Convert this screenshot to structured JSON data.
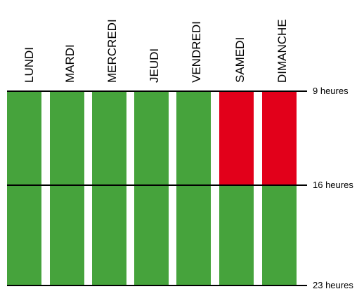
{
  "colors": {
    "open": "#46a33c",
    "closed": "#e2001a",
    "line": "#000000"
  },
  "days": [
    "LUNDI",
    "MARDI",
    "MERCREDI",
    "JEUDI",
    "VENDREDI",
    "SAMEDI",
    "DIMANCHE"
  ],
  "time_marks": [
    "9 heures",
    "16 heures",
    "23 heures"
  ],
  "blocks": [
    {
      "day": "LUNDI",
      "from": "9 heures",
      "to": "16 heures",
      "status": "open"
    },
    {
      "day": "LUNDI",
      "from": "16 heures",
      "to": "23 heures",
      "status": "open"
    },
    {
      "day": "MARDI",
      "from": "9 heures",
      "to": "16 heures",
      "status": "open"
    },
    {
      "day": "MARDI",
      "from": "16 heures",
      "to": "23 heures",
      "status": "open"
    },
    {
      "day": "MERCREDI",
      "from": "9 heures",
      "to": "16 heures",
      "status": "open"
    },
    {
      "day": "MERCREDI",
      "from": "16 heures",
      "to": "23 heures",
      "status": "open"
    },
    {
      "day": "JEUDI",
      "from": "9 heures",
      "to": "16 heures",
      "status": "open"
    },
    {
      "day": "JEUDI",
      "from": "16 heures",
      "to": "23 heures",
      "status": "open"
    },
    {
      "day": "VENDREDI",
      "from": "9 heures",
      "to": "16 heures",
      "status": "open"
    },
    {
      "day": "VENDREDI",
      "from": "16 heures",
      "to": "23 heures",
      "status": "open"
    },
    {
      "day": "SAMEDI",
      "from": "9 heures",
      "to": "16 heures",
      "status": "closed"
    },
    {
      "day": "SAMEDI",
      "from": "16 heures",
      "to": "23 heures",
      "status": "open"
    },
    {
      "day": "DIMANCHE",
      "from": "9 heures",
      "to": "16 heures",
      "status": "closed"
    },
    {
      "day": "DIMANCHE",
      "from": "16 heures",
      "to": "23 heures",
      "status": "open"
    }
  ]
}
